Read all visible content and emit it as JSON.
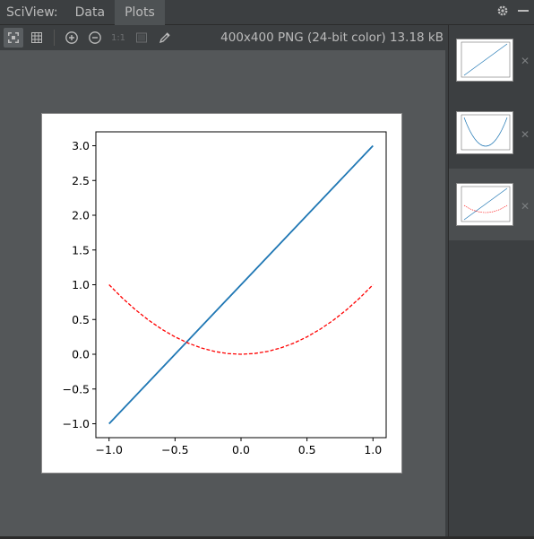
{
  "titlebar": {
    "app_title": "SciView:",
    "tabs": [
      {
        "label": "Data",
        "active": false
      },
      {
        "label": "Plots",
        "active": true
      }
    ]
  },
  "toolbar": {
    "icons": [
      "fit-zoom-icon",
      "grid-icon",
      "zoom-in-icon",
      "zoom-out-icon",
      "actual-size-icon",
      "background-icon",
      "color-picker-icon"
    ],
    "actual_size_label": "1:1",
    "image_info": "400x400 PNG (24-bit color) 13.18 kB"
  },
  "thumbnails": [
    {
      "selected": false,
      "icon": "line-plot-thumbnail"
    },
    {
      "selected": false,
      "icon": "parabola-plot-thumbnail"
    },
    {
      "selected": true,
      "icon": "combined-plot-thumbnail"
    }
  ],
  "colors": {
    "series_line": "#1f77b4",
    "series_dashed": "#ff0000",
    "background": "#545759",
    "panel": "#3c3f41"
  },
  "chart_data": {
    "type": "line",
    "title": "",
    "xlabel": "",
    "ylabel": "",
    "xlim": [
      -1.1,
      1.1
    ],
    "ylim": [
      -1.2,
      3.2
    ],
    "xticks": [
      -1.0,
      -0.5,
      0.0,
      0.5,
      1.0
    ],
    "xtick_labels": [
      "−1.0",
      "−0.5",
      "0.0",
      "0.5",
      "1.0"
    ],
    "yticks": [
      -1.0,
      -0.5,
      0.0,
      0.5,
      1.0,
      1.5,
      2.0,
      2.5,
      3.0
    ],
    "ytick_labels": [
      "−1.0",
      "−0.5",
      "0.0",
      "0.5",
      "1.0",
      "1.5",
      "2.0",
      "2.5",
      "3.0"
    ],
    "series": [
      {
        "style": "solid",
        "color": "#1f77b4",
        "x": [
          -1.0,
          1.0
        ],
        "y": [
          -1.0,
          3.0
        ]
      },
      {
        "style": "dashed",
        "color": "#ff0000",
        "x": [
          -1.0,
          -0.9,
          -0.8,
          -0.7,
          -0.6,
          -0.5,
          -0.4,
          -0.3,
          -0.2,
          -0.1,
          0.0,
          0.1,
          0.2,
          0.3,
          0.4,
          0.5,
          0.6,
          0.7,
          0.8,
          0.9,
          1.0
        ],
        "y": [
          1.0,
          0.81,
          0.64,
          0.49,
          0.36,
          0.25,
          0.16,
          0.09,
          0.04,
          0.01,
          0.0,
          0.01,
          0.04,
          0.09,
          0.16,
          0.25,
          0.36,
          0.49,
          0.64,
          0.81,
          1.0
        ]
      }
    ],
    "grid": false,
    "legend": "none"
  }
}
